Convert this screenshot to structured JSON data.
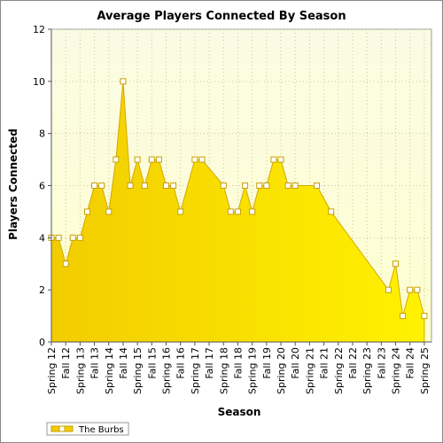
{
  "chart_data": {
    "type": "area",
    "title": "Average Players Connected By Season",
    "xlabel": "Season",
    "ylabel": "Players Connected",
    "ylim": [
      0,
      12
    ],
    "yticks": [
      0,
      2,
      4,
      6,
      8,
      10,
      12
    ],
    "grid": true,
    "legend_position": "bottom-left",
    "categories": [
      "Spring 12",
      "Fall 12",
      "Spring 13",
      "Fall 13",
      "Spring 14",
      "Fall 14",
      "Spring 15",
      "Fall 15",
      "Spring 16",
      "Fall 16",
      "Spring 17",
      "Fall 17",
      "Spring 18",
      "Fall 18",
      "Spring 19",
      "Fall 19",
      "Spring 20",
      "Fall 20",
      "Spring 21",
      "Fall 21",
      "Spring 22",
      "Fall 22",
      "Spring 23",
      "Fall 23",
      "Spring 24",
      "Fall 24",
      "Spring 25"
    ],
    "series": [
      {
        "name": "The Burbs",
        "color": "#ffe000",
        "points": [
          [
            0,
            4
          ],
          [
            0.5,
            4
          ],
          [
            1,
            3
          ],
          [
            1.5,
            4
          ],
          [
            2,
            4
          ],
          [
            2.5,
            5
          ],
          [
            3,
            6
          ],
          [
            3.5,
            6
          ],
          [
            4,
            5
          ],
          [
            4.5,
            7
          ],
          [
            5,
            10
          ],
          [
            5.5,
            6
          ],
          [
            6,
            7
          ],
          [
            6.5,
            6
          ],
          [
            7,
            7
          ],
          [
            7.5,
            7
          ],
          [
            8,
            6
          ],
          [
            8.5,
            6
          ],
          [
            9,
            5
          ],
          [
            10,
            7
          ],
          [
            10.5,
            7
          ],
          [
            12,
            6
          ],
          [
            12.5,
            5
          ],
          [
            13,
            5
          ],
          [
            13.5,
            6
          ],
          [
            14,
            5
          ],
          [
            14.5,
            6
          ],
          [
            15,
            6
          ],
          [
            15.5,
            7
          ],
          [
            16,
            7
          ],
          [
            16.5,
            6
          ],
          [
            17,
            6
          ],
          [
            18.5,
            6
          ],
          [
            19.5,
            5
          ],
          [
            23.5,
            2
          ],
          [
            24,
            3
          ],
          [
            24.5,
            1
          ],
          [
            25,
            2
          ],
          [
            25.5,
            2
          ],
          [
            26,
            1
          ]
        ]
      }
    ]
  }
}
